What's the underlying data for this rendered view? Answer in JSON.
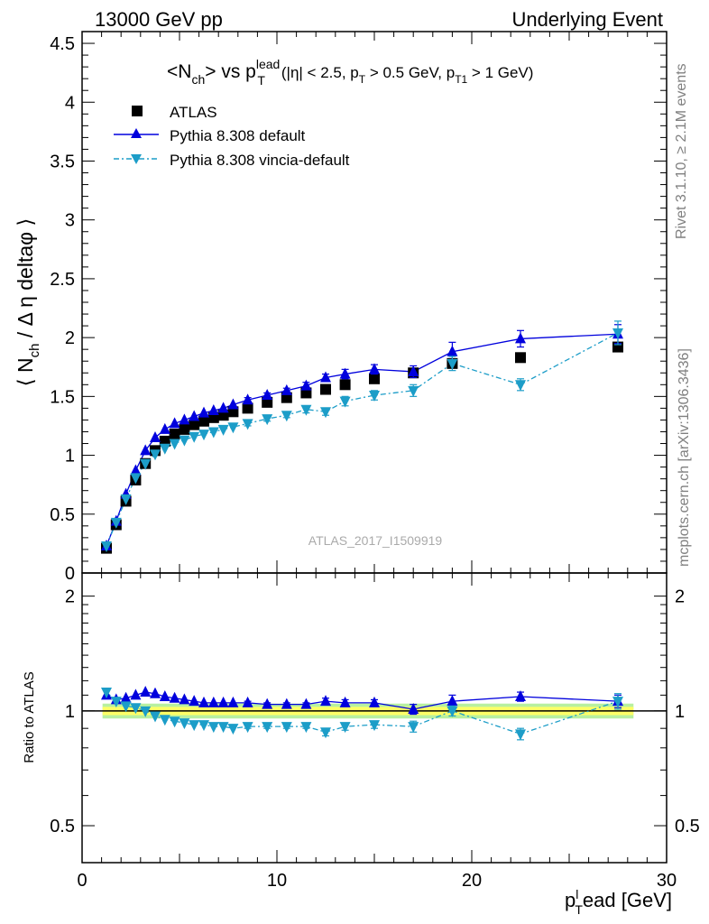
{
  "header": {
    "left": "13000 GeV pp",
    "right": "Underlying Event"
  },
  "side_text": {
    "rivet": "Rivet 3.1.10, ≥ 2.1M events",
    "mcplots": "mcplots.cern.ch [arXiv:1306.3436]"
  },
  "analysis_label": "ATLAS_2017_I1509919",
  "colors": {
    "atlas": "#000000",
    "default": "#0000dd",
    "vincia": "#1c9dc8",
    "band_inner": "#ffff66",
    "band_outer": "#b8f0a0"
  },
  "chart_data": [
    {
      "type": "scatter",
      "title": "<N_ch> vs p_T^lead (|η| < 2.5, p_T > 0.5 GeV, p_T1 > 1 GeV)",
      "xlabel": "p_T^l ead [GeV]",
      "ylabel": "⟨ N_ch / Δη deltaφ ⟩",
      "xlim": [
        0,
        30
      ],
      "ylim": [
        0,
        4.6
      ],
      "yticks": [
        0,
        0.5,
        1,
        1.5,
        2,
        2.5,
        3,
        3.5,
        4,
        4.5
      ],
      "ytick_labels": [
        "0",
        "0.5",
        "1",
        "1.5",
        "2",
        "2.5",
        "3",
        "3.5",
        "4",
        "4.5"
      ],
      "legend_position": "top-left",
      "series": [
        {
          "name": "ATLAS",
          "marker": "square",
          "x": [
            1.25,
            1.75,
            2.25,
            2.75,
            3.25,
            3.75,
            4.25,
            4.75,
            5.25,
            5.75,
            6.25,
            6.75,
            7.25,
            7.75,
            8.5,
            9.5,
            10.5,
            11.5,
            12.5,
            13.5,
            15,
            17,
            19,
            22.5,
            27.5
          ],
          "y": [
            0.21,
            0.41,
            0.61,
            0.79,
            0.93,
            1.04,
            1.12,
            1.18,
            1.22,
            1.26,
            1.29,
            1.32,
            1.34,
            1.37,
            1.4,
            1.45,
            1.49,
            1.53,
            1.56,
            1.6,
            1.65,
            1.7,
            1.78,
            1.83,
            1.92
          ]
        },
        {
          "name": "Pythia 8.308 default",
          "marker": "triangle-up",
          "x": [
            1.25,
            1.75,
            2.25,
            2.75,
            3.25,
            3.75,
            4.25,
            4.75,
            5.25,
            5.75,
            6.25,
            6.75,
            7.25,
            7.75,
            8.5,
            9.5,
            10.5,
            11.5,
            12.5,
            13.5,
            15,
            17,
            19,
            22.5,
            27.5
          ],
          "y": [
            0.23,
            0.44,
            0.67,
            0.87,
            1.04,
            1.15,
            1.22,
            1.27,
            1.3,
            1.33,
            1.36,
            1.38,
            1.4,
            1.43,
            1.47,
            1.51,
            1.55,
            1.59,
            1.66,
            1.69,
            1.73,
            1.71,
            1.88,
            1.99,
            2.03
          ],
          "yerr": [
            0,
            0,
            0,
            0,
            0,
            0,
            0,
            0,
            0,
            0,
            0,
            0,
            0,
            0,
            0.02,
            0.02,
            0.02,
            0.03,
            0.03,
            0.04,
            0.04,
            0.05,
            0.08,
            0.07,
            0.08
          ]
        },
        {
          "name": "Pythia 8.308 vincia-default",
          "marker": "triangle-down",
          "x": [
            1.25,
            1.75,
            2.25,
            2.75,
            3.25,
            3.75,
            4.25,
            4.75,
            5.25,
            5.75,
            6.25,
            6.75,
            7.25,
            7.75,
            8.5,
            9.5,
            10.5,
            11.5,
            12.5,
            13.5,
            15,
            17,
            19,
            22.5,
            27.5
          ],
          "y": [
            0.23,
            0.43,
            0.63,
            0.81,
            0.93,
            1.01,
            1.06,
            1.1,
            1.13,
            1.16,
            1.18,
            1.2,
            1.22,
            1.24,
            1.27,
            1.31,
            1.34,
            1.39,
            1.37,
            1.46,
            1.51,
            1.55,
            1.78,
            1.6,
            2.04
          ],
          "yerr": [
            0,
            0,
            0,
            0,
            0,
            0,
            0,
            0,
            0,
            0,
            0,
            0,
            0,
            0,
            0.02,
            0.02,
            0.02,
            0.03,
            0.03,
            0.04,
            0.04,
            0.05,
            0.06,
            0.05,
            0.1
          ]
        }
      ]
    },
    {
      "type": "scatter",
      "ylabel": "Ratio to ATLAS",
      "xlabel": "p_T^l ead [GeV]",
      "xlim": [
        0,
        30
      ],
      "ylim": [
        0.4,
        2.3
      ],
      "ylog": true,
      "xticks": [
        0,
        10,
        20,
        30
      ],
      "xtick_labels": [
        "0",
        "10",
        "20",
        "30"
      ],
      "yticks": [
        0.5,
        1,
        2
      ],
      "ytick_labels": [
        "0.5",
        "1",
        "2"
      ],
      "series": [
        {
          "name": "Pythia 8.308 default",
          "x": [
            1.25,
            1.75,
            2.25,
            2.75,
            3.25,
            3.75,
            4.25,
            4.75,
            5.25,
            5.75,
            6.25,
            6.75,
            7.25,
            7.75,
            8.5,
            9.5,
            10.5,
            11.5,
            12.5,
            13.5,
            15,
            17,
            19,
            22.5,
            27.5
          ],
          "y": [
            1.1,
            1.07,
            1.08,
            1.1,
            1.12,
            1.11,
            1.09,
            1.08,
            1.07,
            1.06,
            1.05,
            1.05,
            1.05,
            1.05,
            1.05,
            1.04,
            1.04,
            1.04,
            1.06,
            1.05,
            1.05,
            1.01,
            1.06,
            1.09,
            1.06
          ],
          "yerr": [
            0,
            0,
            0,
            0,
            0,
            0,
            0,
            0,
            0,
            0,
            0,
            0,
            0,
            0,
            0.01,
            0.01,
            0.01,
            0.01,
            0.02,
            0.02,
            0.02,
            0.03,
            0.04,
            0.03,
            0.04
          ]
        },
        {
          "name": "Pythia 8.308 vincia-default",
          "x": [
            1.25,
            1.75,
            2.25,
            2.75,
            3.25,
            3.75,
            4.25,
            4.75,
            5.25,
            5.75,
            6.25,
            6.75,
            7.25,
            7.75,
            8.5,
            9.5,
            10.5,
            11.5,
            12.5,
            13.5,
            15,
            17,
            19,
            22.5,
            27.5
          ],
          "y": [
            1.12,
            1.06,
            1.03,
            1.02,
            1.0,
            0.97,
            0.95,
            0.94,
            0.93,
            0.92,
            0.92,
            0.91,
            0.91,
            0.9,
            0.91,
            0.91,
            0.91,
            0.91,
            0.88,
            0.91,
            0.92,
            0.91,
            1.0,
            0.87,
            1.06
          ],
          "yerr": [
            0,
            0,
            0,
            0,
            0,
            0,
            0,
            0,
            0,
            0,
            0,
            0,
            0,
            0,
            0.01,
            0.01,
            0.01,
            0.01,
            0.02,
            0.02,
            0.02,
            0.03,
            0.03,
            0.03,
            0.05
          ]
        }
      ]
    }
  ]
}
